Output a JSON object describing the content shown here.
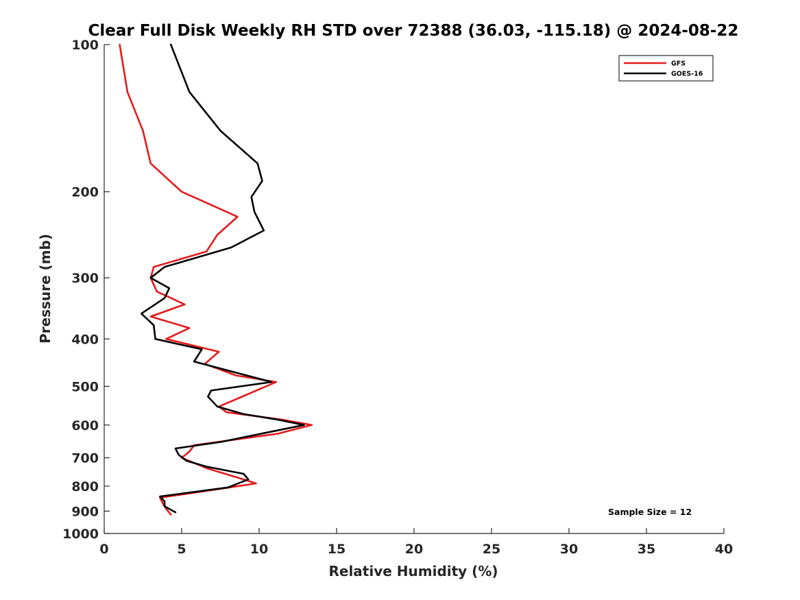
{
  "chart_data": {
    "type": "line",
    "title": "Clear Full Disk Weekly RH STD over 72388 (36.03, -115.18) @ 2024-08-22",
    "xlabel": "Relative Humidity (%)",
    "ylabel": "Pressure (mb)",
    "xlim": [
      0,
      40
    ],
    "ylim": [
      100,
      1000
    ],
    "y_scale": "log",
    "y_reversed": true,
    "x_ticks": [
      0,
      5,
      10,
      15,
      20,
      25,
      30,
      35,
      40
    ],
    "y_ticks": [
      100,
      200,
      300,
      400,
      500,
      600,
      700,
      800,
      900,
      1000
    ],
    "grid": false,
    "legend_position": "top-right",
    "annotation": "Sample Size = 12",
    "series": [
      {
        "name": "GFS",
        "color": "#e41a1c",
        "points": [
          [
            1.0,
            100
          ],
          [
            1.5,
            125
          ],
          [
            2.5,
            150
          ],
          [
            3.0,
            175
          ],
          [
            5.0,
            200
          ],
          [
            8.6,
            225
          ],
          [
            7.3,
            245
          ],
          [
            6.6,
            265
          ],
          [
            3.2,
            285
          ],
          [
            3.0,
            300
          ],
          [
            3.4,
            320
          ],
          [
            5.2,
            340
          ],
          [
            3.0,
            360
          ],
          [
            5.5,
            380
          ],
          [
            4.0,
            400
          ],
          [
            7.4,
            425
          ],
          [
            6.5,
            450
          ],
          [
            8.5,
            475
          ],
          [
            11.1,
            490
          ],
          [
            8.9,
            525
          ],
          [
            7.4,
            550
          ],
          [
            7.9,
            565
          ],
          [
            11.5,
            585
          ],
          [
            13.4,
            600
          ],
          [
            11.2,
            625
          ],
          [
            5.8,
            660
          ],
          [
            5.5,
            680
          ],
          [
            5.0,
            700
          ],
          [
            6.6,
            735
          ],
          [
            9.0,
            775
          ],
          [
            9.8,
            790
          ],
          [
            8.1,
            805
          ],
          [
            3.6,
            845
          ],
          [
            3.8,
            870
          ],
          [
            4.0,
            890
          ],
          [
            4.3,
            915
          ]
        ]
      },
      {
        "name": "GOES-16",
        "color": "#000000",
        "points": [
          [
            4.3,
            100
          ],
          [
            5.5,
            125
          ],
          [
            7.5,
            150
          ],
          [
            9.9,
            175
          ],
          [
            10.2,
            190
          ],
          [
            9.5,
            205
          ],
          [
            9.7,
            220
          ],
          [
            10.3,
            240
          ],
          [
            8.2,
            260
          ],
          [
            3.9,
            285
          ],
          [
            3.0,
            300
          ],
          [
            4.2,
            315
          ],
          [
            3.9,
            330
          ],
          [
            2.4,
            355
          ],
          [
            3.2,
            375
          ],
          [
            3.3,
            400
          ],
          [
            6.3,
            420
          ],
          [
            5.8,
            445
          ],
          [
            10.8,
            490
          ],
          [
            6.9,
            510
          ],
          [
            6.7,
            525
          ],
          [
            7.3,
            550
          ],
          [
            9.0,
            570
          ],
          [
            11.2,
            585
          ],
          [
            12.9,
            600
          ],
          [
            7.5,
            650
          ],
          [
            4.6,
            670
          ],
          [
            4.8,
            690
          ],
          [
            5.3,
            710
          ],
          [
            6.6,
            730
          ],
          [
            9.0,
            755
          ],
          [
            9.3,
            775
          ],
          [
            8.0,
            805
          ],
          [
            3.6,
            840
          ],
          [
            3.9,
            860
          ],
          [
            3.9,
            880
          ],
          [
            4.6,
            905
          ]
        ]
      }
    ]
  }
}
